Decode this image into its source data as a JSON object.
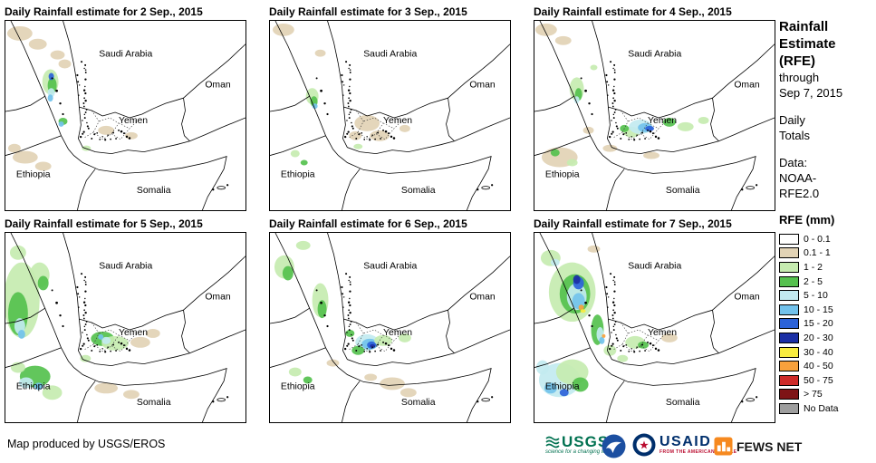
{
  "panels": [
    {
      "title": "Daily Rainfall estimate for 2 Sep., 2015",
      "patches": [
        [
          "tan",
          16,
          14,
          14,
          8
        ],
        [
          "tan",
          36,
          26,
          10,
          6
        ],
        [
          "tan",
          58,
          38,
          8,
          5
        ],
        [
          "tan",
          66,
          48,
          7,
          5
        ],
        [
          "g1",
          50,
          68,
          9,
          14
        ],
        [
          "g2",
          52,
          72,
          5,
          9
        ],
        [
          "b2",
          51,
          62,
          3,
          4
        ],
        [
          "cy",
          51,
          80,
          4,
          5
        ],
        [
          "b1",
          50,
          86,
          3,
          4
        ],
        [
          "g2",
          64,
          112,
          5,
          4
        ],
        [
          "b1",
          62,
          115,
          3,
          3
        ],
        [
          "tan",
          22,
          152,
          14,
          7
        ],
        [
          "tan",
          42,
          162,
          9,
          5
        ],
        [
          "tan",
          10,
          142,
          7,
          5
        ],
        [
          "tan",
          112,
          122,
          9,
          5
        ],
        [
          "tan",
          140,
          128,
          7,
          4
        ],
        [
          "g1",
          90,
          142,
          5,
          3
        ]
      ]
    },
    {
      "title": "Daily Rainfall estimate for 3 Sep., 2015",
      "patches": [
        [
          "tan",
          15,
          10,
          12,
          7
        ],
        [
          "tan",
          56,
          36,
          6,
          4
        ],
        [
          "g1",
          47,
          84,
          7,
          9
        ],
        [
          "g2",
          49,
          90,
          4,
          6
        ],
        [
          "b1",
          50,
          95,
          3,
          3
        ],
        [
          "tan",
          108,
          114,
          14,
          9
        ],
        [
          "tan",
          122,
          128,
          11,
          6
        ],
        [
          "tan",
          95,
          128,
          7,
          5
        ],
        [
          "tan",
          150,
          120,
          6,
          4
        ],
        [
          "g1",
          28,
          148,
          5,
          4
        ],
        [
          "g2",
          38,
          158,
          4,
          3
        ],
        [
          "g1",
          98,
          140,
          5,
          3
        ]
      ]
    },
    {
      "title": "Daily Rainfall estimate for 4 Sep., 2015",
      "patches": [
        [
          "tan",
          13,
          10,
          12,
          7
        ],
        [
          "tan",
          32,
          22,
          9,
          5
        ],
        [
          "g1",
          47,
          76,
          8,
          13
        ],
        [
          "g2",
          49,
          82,
          4,
          7
        ],
        [
          "cy",
          47,
          88,
          3,
          4
        ],
        [
          "g1",
          66,
          52,
          4,
          3
        ],
        [
          "g1",
          108,
          124,
          9,
          6
        ],
        [
          "cy",
          118,
          118,
          13,
          8
        ],
        [
          "b1",
          123,
          119,
          8,
          5
        ],
        [
          "b2",
          128,
          120,
          5,
          3
        ],
        [
          "g2",
          100,
          120,
          5,
          4
        ],
        [
          "g2",
          150,
          113,
          7,
          5
        ],
        [
          "g1",
          168,
          118,
          9,
          5
        ],
        [
          "g1",
          188,
          111,
          6,
          4
        ],
        [
          "tan",
          28,
          152,
          20,
          11
        ],
        [
          "g2",
          23,
          147,
          5,
          4
        ],
        [
          "g1",
          42,
          158,
          6,
          4
        ],
        [
          "tan",
          84,
          142,
          8,
          4
        ],
        [
          "tan",
          130,
          150,
          9,
          4
        ],
        [
          "tan",
          60,
          122,
          6,
          4
        ]
      ]
    },
    {
      "title": "Daily Rainfall estimate for 5 Sep., 2015",
      "patches": [
        [
          "g1",
          18,
          75,
          20,
          42
        ],
        [
          "g2",
          14,
          90,
          11,
          24
        ],
        [
          "cy",
          16,
          104,
          6,
          9
        ],
        [
          "b1",
          18,
          113,
          4,
          5
        ],
        [
          "g1",
          38,
          47,
          11,
          14
        ],
        [
          "g2",
          42,
          56,
          6,
          8
        ],
        [
          "g1",
          14,
          22,
          9,
          8
        ],
        [
          "g2",
          108,
          118,
          13,
          8
        ],
        [
          "g1",
          122,
          123,
          15,
          8
        ],
        [
          "cy",
          112,
          120,
          5,
          4
        ],
        [
          "b1",
          106,
          116,
          3,
          3
        ],
        [
          "tan",
          150,
          122,
          11,
          6
        ],
        [
          "tan",
          164,
          112,
          8,
          5
        ],
        [
          "g2",
          33,
          160,
          17,
          12
        ],
        [
          "cy",
          23,
          167,
          8,
          6
        ],
        [
          "b1",
          37,
          171,
          5,
          4
        ],
        [
          "g1",
          52,
          178,
          11,
          8
        ],
        [
          "g1",
          14,
          150,
          8,
          6
        ],
        [
          "tan",
          112,
          173,
          13,
          6
        ],
        [
          "tan",
          140,
          180,
          9,
          5
        ],
        [
          "g1",
          89,
          140,
          6,
          4
        ]
      ]
    },
    {
      "title": "Daily Rainfall estimate for 6 Sep., 2015",
      "patches": [
        [
          "g1",
          16,
          38,
          11,
          13
        ],
        [
          "g2",
          20,
          45,
          6,
          8
        ],
        [
          "g1",
          37,
          14,
          8,
          5
        ],
        [
          "g1",
          56,
          75,
          9,
          19
        ],
        [
          "g2",
          58,
          85,
          5,
          10
        ],
        [
          "cy",
          108,
          122,
          13,
          9
        ],
        [
          "b1",
          111,
          124,
          9,
          6
        ],
        [
          "b2",
          113,
          125,
          5,
          4
        ],
        [
          "b3",
          114,
          126,
          3,
          2
        ],
        [
          "g2",
          98,
          131,
          7,
          5
        ],
        [
          "g1",
          126,
          120,
          10,
          6
        ],
        [
          "g2",
          89,
          112,
          5,
          4
        ],
        [
          "g1",
          150,
          117,
          7,
          5
        ],
        [
          "tan",
          136,
          168,
          14,
          7
        ],
        [
          "tan",
          154,
          178,
          9,
          5
        ],
        [
          "tan",
          112,
          161,
          7,
          4
        ],
        [
          "g1",
          28,
          155,
          7,
          5
        ],
        [
          "g2",
          42,
          164,
          5,
          4
        ],
        [
          "tan",
          70,
          145,
          7,
          4
        ]
      ]
    },
    {
      "title": "Daily Rainfall estimate for 7 Sep., 2015",
      "patches": [
        [
          "g1",
          42,
          66,
          26,
          33
        ],
        [
          "g2",
          45,
          68,
          17,
          22
        ],
        [
          "cy",
          47,
          71,
          11,
          15
        ],
        [
          "b1",
          49,
          76,
          7,
          9
        ],
        [
          "b2",
          49,
          56,
          6,
          7
        ],
        [
          "b3",
          47,
          52,
          4,
          5
        ],
        [
          "o",
          52,
          83,
          3,
          3
        ],
        [
          "y",
          54,
          87,
          3,
          2
        ],
        [
          "g1",
          18,
          28,
          11,
          9
        ],
        [
          "cy",
          23,
          33,
          5,
          4
        ],
        [
          "tan",
          66,
          18,
          7,
          4
        ],
        [
          "g2",
          70,
          108,
          7,
          17
        ],
        [
          "cy",
          73,
          113,
          4,
          8
        ],
        [
          "b1",
          75,
          120,
          3,
          4
        ],
        [
          "o",
          77,
          115,
          2,
          2
        ],
        [
          "g1",
          84,
          131,
          7,
          6
        ],
        [
          "cy",
          28,
          164,
          23,
          19
        ],
        [
          "g1",
          42,
          155,
          18,
          14
        ],
        [
          "b1",
          18,
          173,
          7,
          6
        ],
        [
          "b2",
          33,
          178,
          5,
          4
        ],
        [
          "g2",
          51,
          169,
          9,
          8
        ],
        [
          "cy",
          9,
          150,
          7,
          8
        ],
        [
          "g1",
          112,
          122,
          11,
          7
        ],
        [
          "g2",
          121,
          125,
          6,
          4
        ],
        [
          "tan",
          150,
          117,
          9,
          5
        ],
        [
          "g1",
          98,
          140,
          6,
          4
        ]
      ]
    }
  ],
  "map_labels": {
    "saudi_arabia": "Saudi Arabia",
    "oman": "Oman",
    "yemen": "Yemen",
    "ethiopia": "Ethiopia",
    "somalia": "Somalia"
  },
  "palette": {
    "tan": "#E2D3B5",
    "g1": "#C6ECB0",
    "g2": "#55C14E",
    "cy": "#C2EAF0",
    "b1": "#72C2EC",
    "b2": "#2B62D9",
    "b3": "#1B2FA5",
    "y": "#F8EC40",
    "o": "#F8A13C"
  },
  "sidebar": {
    "title_line1": "Rainfall",
    "title_line2": "Estimate",
    "title_line3": "(RFE)",
    "through": "through",
    "date": "Sep 7, 2015",
    "daily": "Daily",
    "totals": "Totals",
    "data_label": "Data:",
    "source_line1": "NOAA-",
    "source_line2": "RFE2.0"
  },
  "legend": {
    "title": "RFE (mm)",
    "items": [
      {
        "label": "0 - 0.1",
        "color": "#FFFFFF"
      },
      {
        "label": "0.1 - 1",
        "color": "#E2D3B5"
      },
      {
        "label": "1 - 2",
        "color": "#C6ECB0"
      },
      {
        "label": "2 - 5",
        "color": "#55C14E"
      },
      {
        "label": "5 - 10",
        "color": "#C2EAF0"
      },
      {
        "label": "10 - 15",
        "color": "#72C2EC"
      },
      {
        "label": "15 - 20",
        "color": "#2B62D9"
      },
      {
        "label": "20 - 30",
        "color": "#1B2FA5"
      },
      {
        "label": "30 - 40",
        "color": "#F8EC40"
      },
      {
        "label": "40 - 50",
        "color": "#F8A13C"
      },
      {
        "label": "50 - 75",
        "color": "#CE2B29"
      },
      {
        "label": "> 75",
        "color": "#7E1416"
      },
      {
        "label": "No Data",
        "color": "#9E9E9E"
      }
    ]
  },
  "footer": {
    "credit": "Map produced by USGS/EROS"
  },
  "logos": {
    "usgs": "USGS",
    "usgs_tagline": "science for a changing world",
    "usaid": "USAID",
    "usaid_tagline": "FROM THE AMERICAN PEOPLE",
    "fewsnet": "FEWS NET"
  }
}
